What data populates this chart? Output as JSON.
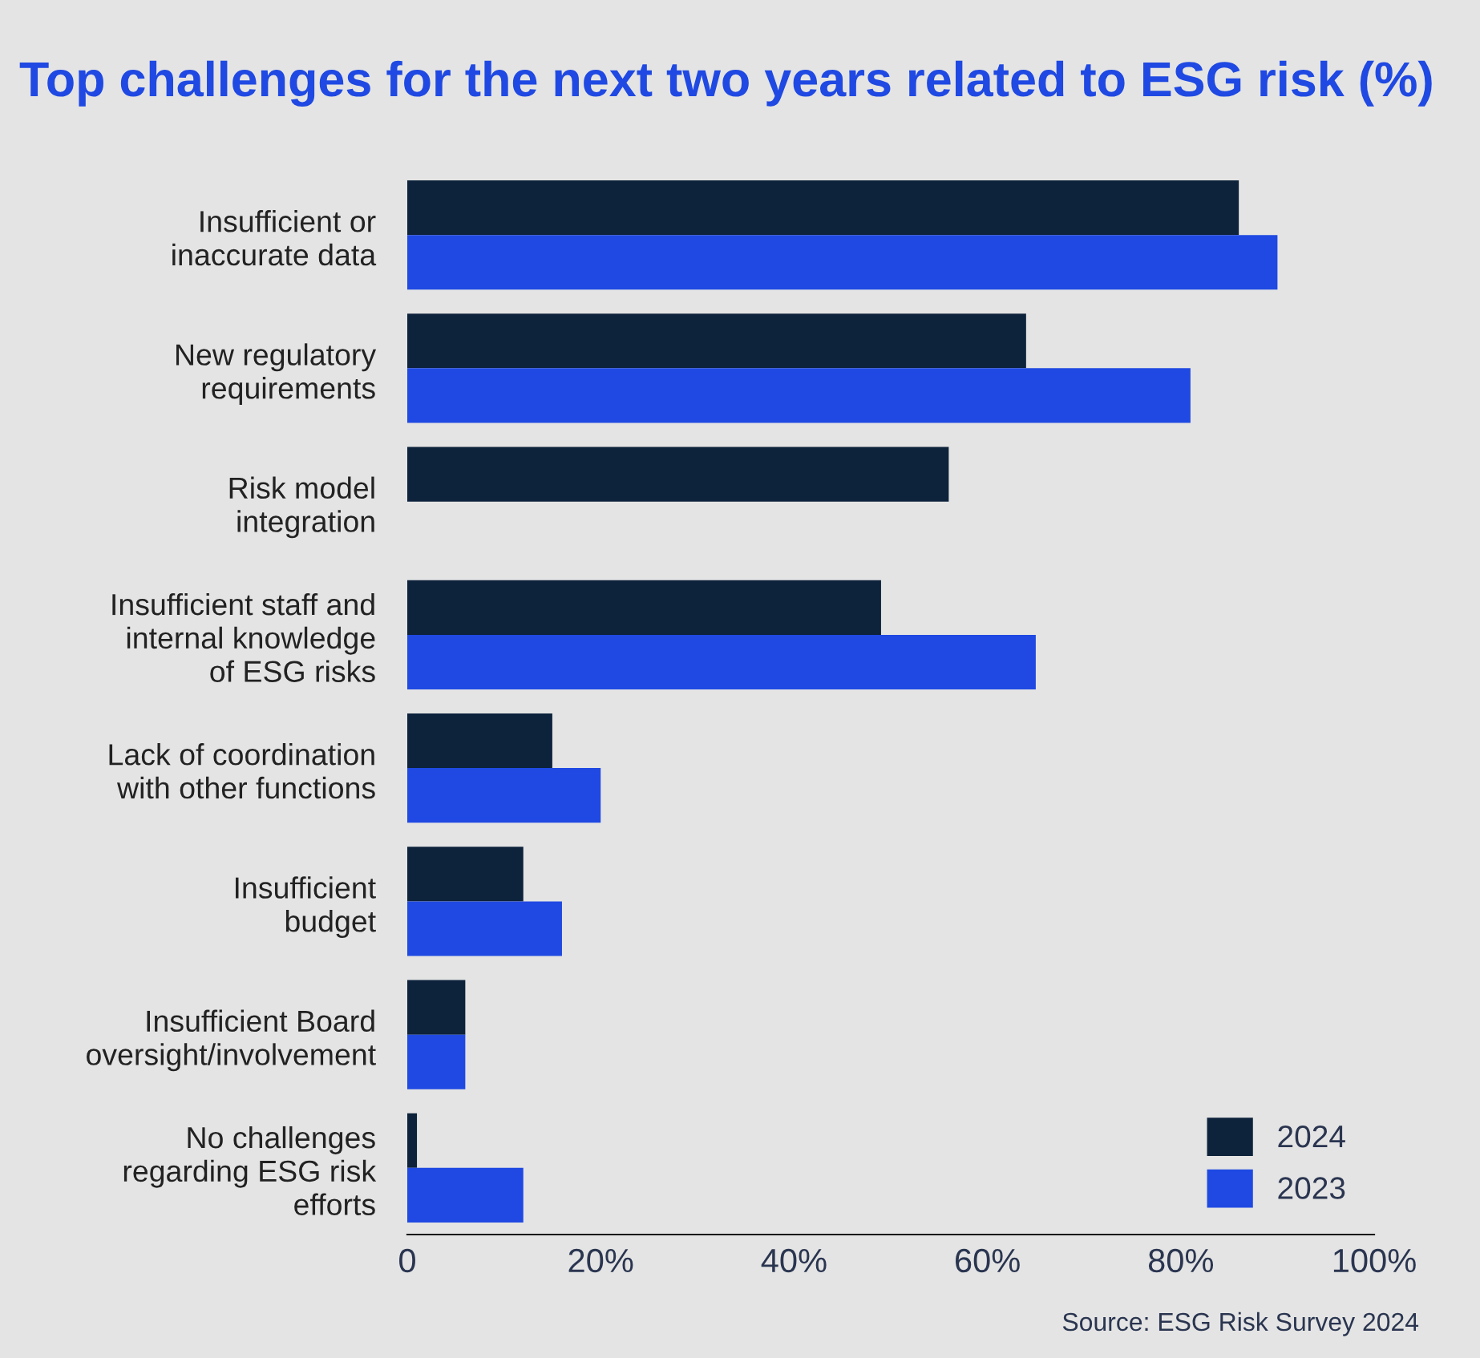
{
  "chart_data": {
    "type": "bar",
    "orientation": "horizontal",
    "title": "Top challenges for the next two years related to ESG risk (%)",
    "categories": [
      "Insufficient or\ninaccurate data",
      "New regulatory\nrequirements",
      "Risk model\nintegration",
      "Insufficient staff and\ninternal knowledge\nof ESG risks",
      "Lack of coordination\nwith other functions",
      "Insufficient\nbudget",
      "Insufficient Board\noversight/involvement",
      "No challenges\nregarding ESG risk\nefforts"
    ],
    "series": [
      {
        "name": "2024",
        "color": "#0d223b",
        "values": [
          86,
          64,
          56,
          49,
          15,
          12,
          6,
          1
        ]
      },
      {
        "name": "2023",
        "color": "#1f49e2",
        "values": [
          90,
          81,
          null,
          65,
          20,
          16,
          6,
          12
        ]
      }
    ],
    "xlim": [
      0,
      100
    ],
    "xticks": [
      {
        "value": 0,
        "label": "0"
      },
      {
        "value": 20,
        "label": "20%"
      },
      {
        "value": 40,
        "label": "40%"
      },
      {
        "value": 60,
        "label": "60%"
      },
      {
        "value": 80,
        "label": "80%"
      },
      {
        "value": 100,
        "label": "100%"
      }
    ],
    "legend": "bottom right",
    "grid": false,
    "annotations": [
      "Source: ESG Risk Survey 2024"
    ]
  }
}
